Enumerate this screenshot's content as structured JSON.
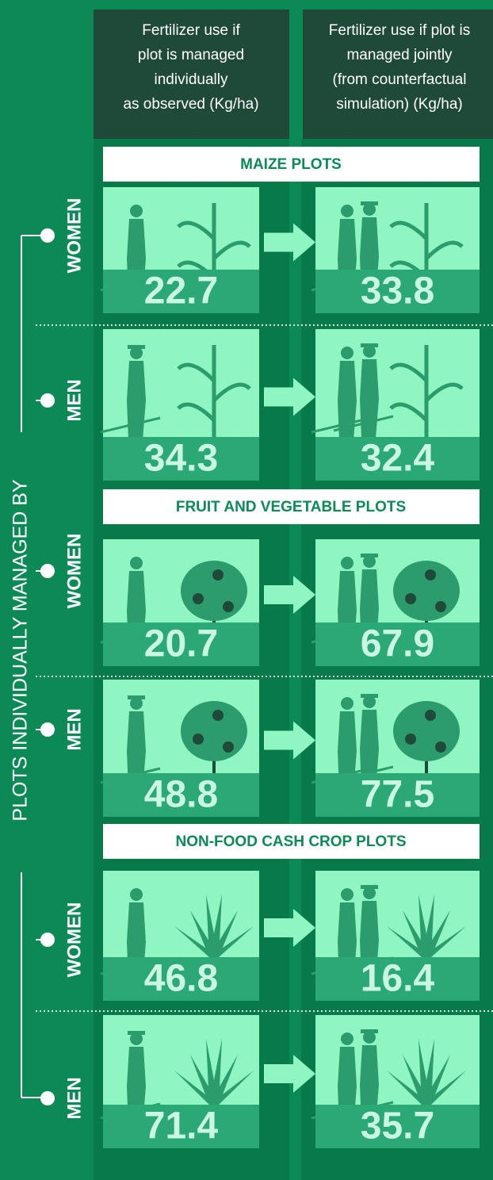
{
  "header": {
    "left": [
      "Fertilizer use if",
      "plot is managed",
      "individually",
      "as observed (Kg/ha)"
    ],
    "right": [
      "Fertilizer use if plot is",
      "managed jointly",
      "(from counterfactual",
      "simulation) (Kg/ha)"
    ]
  },
  "side_label": "PLOTS INDIVIDUALLY MANAGED BY",
  "sections": [
    {
      "title": "MAIZE PLOTS",
      "rows": [
        {
          "label": "WOMEN",
          "individual": 22.7,
          "joint": 33.8
        },
        {
          "label": "MEN",
          "individual": 34.3,
          "joint": 32.4
        }
      ]
    },
    {
      "title": "FRUIT AND VEGETABLE PLOTS",
      "rows": [
        {
          "label": "WOMEN",
          "individual": 20.7,
          "joint": 67.9
        },
        {
          "label": "MEN",
          "individual": 48.8,
          "joint": 77.5
        }
      ]
    },
    {
      "title": "NON-FOOD CASH CROP PLOTS",
      "rows": [
        {
          "label": "WOMEN",
          "individual": 46.8,
          "joint": 16.4
        },
        {
          "label": "MEN",
          "individual": 71.4,
          "joint": 35.7
        }
      ]
    }
  ]
}
